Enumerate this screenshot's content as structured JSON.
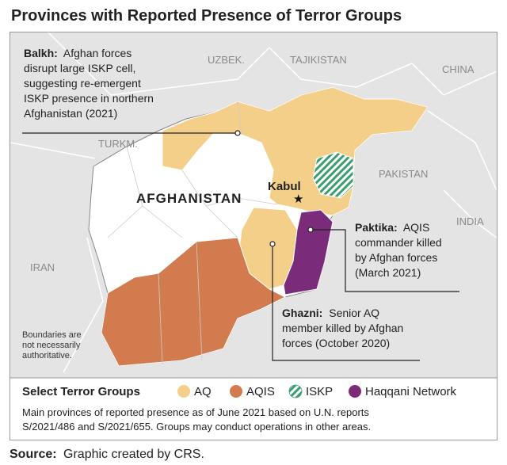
{
  "title": "Provinces with Reported Presence of Terror Groups",
  "map": {
    "countries": {
      "uzbek": "UZBEK.",
      "tajikistan": "TAJIKISTAN",
      "china": "CHINA",
      "turkm": "TURKM.",
      "pakistan": "PAKISTAN",
      "india": "INDIA",
      "iran": "IRAN",
      "afghanistan": "AFGHANISTAN"
    },
    "capital": "Kabul",
    "boundaries_note": [
      "Boundaries are",
      "not necessarily",
      "authoritative."
    ]
  },
  "annotations": {
    "balkh": {
      "name": "Balkh:",
      "lines": [
        "Afghan forces",
        "disrupt large ISKP cell,",
        "suggesting re-emergent",
        "ISKP presence in northern",
        "Afghanistan (2021)"
      ]
    },
    "paktika": {
      "name": "Paktika:",
      "lines": [
        "AQIS",
        "commander killed",
        "by Afghan forces",
        "(March 2021)"
      ]
    },
    "ghazni": {
      "name": "Ghazni:",
      "lines": [
        "Senior AQ",
        "member killed by Afghan",
        "forces (October 2020)"
      ]
    }
  },
  "legend": {
    "title": "Select Terror Groups",
    "items": [
      "AQ",
      "AQIS",
      "ISKP",
      "Haqqani Network"
    ]
  },
  "note": [
    "Main provinces of reported presence as of June 2021 based on U.N. reports",
    "S/2021/486 and S/2021/655. Groups may conduct operations in other areas."
  ],
  "source": {
    "label": "Source:",
    "text": "Graphic created by CRS."
  }
}
